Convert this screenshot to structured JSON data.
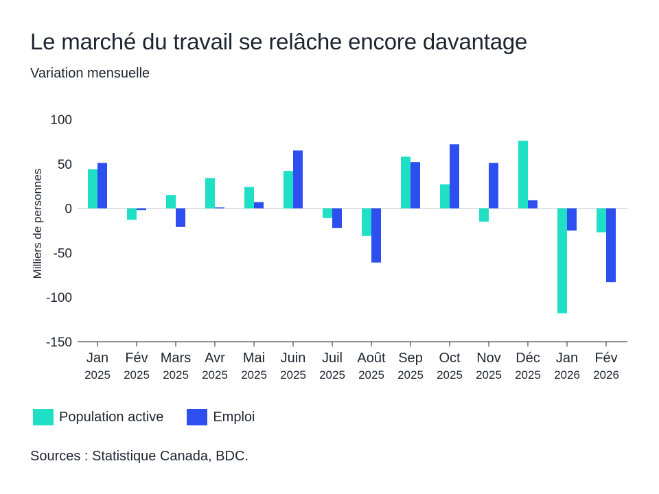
{
  "title": "Le marché du travail se relâche encore davantage",
  "subtitle": "Variation mensuelle",
  "source": "Sources : Statistique Canada, BDC.",
  "colors": {
    "population_active": "#1fe0c4",
    "emploi": "#2e4ff0",
    "axis": "#1d2530",
    "zero_line": "#c8cbd0"
  },
  "chart_data": {
    "type": "bar",
    "ylabel": "Milliers de personnes",
    "ylim": [
      -150,
      100
    ],
    "yticks": [
      100,
      50,
      0,
      -50,
      -100,
      -150
    ],
    "legend_position": "bottom-left",
    "grid": false,
    "categories": [
      {
        "month": "Jan",
        "year": "2025"
      },
      {
        "month": "Fév",
        "year": "2025"
      },
      {
        "month": "Mars",
        "year": "2025"
      },
      {
        "month": "Avr",
        "year": "2025"
      },
      {
        "month": "Mai",
        "year": "2025"
      },
      {
        "month": "Juin",
        "year": "2025"
      },
      {
        "month": "Juil",
        "year": "2025"
      },
      {
        "month": "Août",
        "year": "2025"
      },
      {
        "month": "Sep",
        "year": "2025"
      },
      {
        "month": "Oct",
        "year": "2025"
      },
      {
        "month": "Nov",
        "year": "2025"
      },
      {
        "month": "Déc",
        "year": "2025"
      },
      {
        "month": "Jan",
        "year": "2026"
      },
      {
        "month": "Fév",
        "year": "2026"
      }
    ],
    "series": [
      {
        "name": "Population active",
        "values": [
          44,
          -13,
          15,
          34,
          24,
          42,
          -11,
          -31,
          58,
          27,
          -15,
          76,
          -118,
          -27
        ]
      },
      {
        "name": "Emploi",
        "values": [
          51,
          -2,
          -21,
          1,
          7,
          65,
          -22,
          -61,
          52,
          72,
          51,
          9,
          -25,
          -83
        ]
      }
    ]
  }
}
